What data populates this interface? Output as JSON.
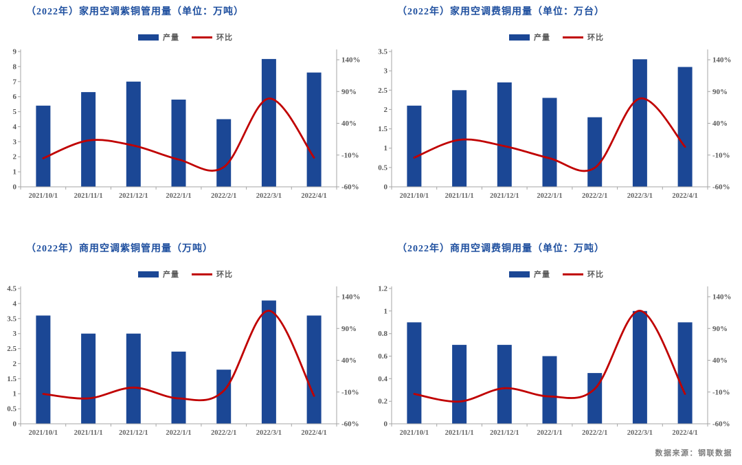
{
  "footer": {
    "source_label": "数据来源：钢联数据"
  },
  "colors": {
    "bar": "#1B4795",
    "line": "#C00000",
    "title_text": "#1E4F9F",
    "axis_line": "#A6A6A6",
    "tick_text": "#595959",
    "xtick_text": "#666666",
    "legend_text": "#595959",
    "footer_text": "#7F7F7F",
    "background": "#FFFFFF"
  },
  "chart_data": [
    {
      "type": "bar",
      "title": "（2022年）家用空调紫铜管用量（单位：万吨）",
      "categories": [
        "2021/10/1",
        "2021/11/1",
        "2021/12/1",
        "2022/1/1",
        "2022/2/1",
        "2022/3/1",
        "2022/4/1"
      ],
      "series": [
        {
          "name": "产量",
          "type": "bar",
          "axis": "left",
          "values": [
            5.4,
            6.3,
            7.0,
            5.8,
            4.5,
            8.5,
            7.6
          ]
        },
        {
          "name": "环比",
          "type": "line",
          "axis": "right",
          "values": [
            -15,
            13,
            5,
            -17,
            -29,
            79,
            -14
          ],
          "unit": "%"
        }
      ],
      "left_axis": {
        "min": 0,
        "max": 9,
        "step": 1
      },
      "right_axis": {
        "min": -60,
        "max": 140,
        "step": 50,
        "ticks": [
          "140%",
          "90%",
          "40%",
          "-10%",
          "-60%"
        ]
      },
      "legend_position": "top",
      "grid": false
    },
    {
      "type": "bar",
      "title": "（2022年）家用空调费铜用量（单位：万台）",
      "categories": [
        "2021/10/1",
        "2021/11/1",
        "2021/12/1",
        "2022/1/1",
        "2022/2/1",
        "2022/3/1",
        "2022/4/1"
      ],
      "series": [
        {
          "name": "产量",
          "type": "bar",
          "axis": "left",
          "values": [
            2.1,
            2.5,
            2.7,
            2.3,
            1.8,
            3.3,
            3.1
          ]
        },
        {
          "name": "环比",
          "type": "line",
          "axis": "right",
          "values": [
            -14,
            14,
            4,
            -15,
            -30,
            79,
            3
          ],
          "unit": "%"
        }
      ],
      "left_axis": {
        "min": 0,
        "max": 3.5,
        "step": 0.5
      },
      "right_axis": {
        "min": -60,
        "max": 140,
        "step": 50,
        "ticks": [
          "140%",
          "90%",
          "40%",
          "-10%",
          "-60%"
        ]
      },
      "legend_position": "top",
      "grid": false
    },
    {
      "type": "bar",
      "title": "（2022年）商用空调紫铜管用量（万吨）",
      "categories": [
        "2021/10/1",
        "2021/11/1",
        "2021/12/1",
        "2022/1/1",
        "2022/2/1",
        "2022/3/1",
        "2022/4/1"
      ],
      "series": [
        {
          "name": "产量",
          "type": "bar",
          "axis": "left",
          "values": [
            3.6,
            3.0,
            3.0,
            2.4,
            1.8,
            4.1,
            3.6
          ]
        },
        {
          "name": "环比",
          "type": "line",
          "axis": "right",
          "values": [
            -13,
            -20,
            -3,
            -20,
            -8,
            118,
            -16
          ],
          "unit": "%"
        }
      ],
      "left_axis": {
        "min": 0,
        "max": 4.5,
        "step": 0.5
      },
      "right_axis": {
        "min": -60,
        "max": 140,
        "step": 50,
        "ticks": [
          "140%",
          "90%",
          "40%",
          "-10%",
          "-60%"
        ]
      },
      "legend_position": "top",
      "grid": false
    },
    {
      "type": "bar",
      "title": "（2022年）商用空调费铜用量（单位：万吨）",
      "categories": [
        "2021/10/1",
        "2021/11/1",
        "2021/12/1",
        "2022/1/1",
        "2022/2/1",
        "2022/3/1",
        "2022/4/1"
      ],
      "series": [
        {
          "name": "产量",
          "type": "bar",
          "axis": "left",
          "values": [
            0.9,
            0.7,
            0.7,
            0.6,
            0.45,
            1.0,
            0.9
          ]
        },
        {
          "name": "环比",
          "type": "line",
          "axis": "right",
          "values": [
            -13,
            -25,
            -4,
            -17,
            -5,
            118,
            -13
          ],
          "unit": "%"
        }
      ],
      "left_axis": {
        "min": 0,
        "max": 1.2,
        "step": 0.2
      },
      "right_axis": {
        "min": -60,
        "max": 140,
        "step": 50,
        "ticks": [
          "140%",
          "90%",
          "40%",
          "-10%",
          "-60%"
        ]
      },
      "legend_position": "top",
      "grid": false
    }
  ]
}
